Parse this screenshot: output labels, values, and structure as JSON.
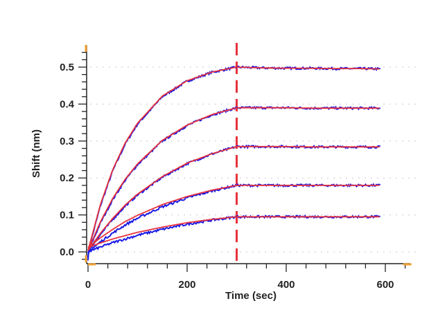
{
  "chart_data": {
    "type": "line",
    "title": "",
    "xlabel": "Time (sec)",
    "ylabel": "Shift (nm)",
    "xlim": [
      0,
      650
    ],
    "ylim": [
      -0.03,
      0.56
    ],
    "x_ticks": [
      "0",
      "200",
      "400",
      "600"
    ],
    "y_ticks": [
      "0.0",
      "0.1",
      "0.2",
      "0.3",
      "0.4",
      "0.5"
    ],
    "grid": "horizontal dotted",
    "vertical_marker_x": 300,
    "colors": {
      "measured": "#1a1ae6",
      "fit": "#e8323c",
      "marker": "#e8323c",
      "cursor": "#f0a030"
    },
    "x": [
      0,
      25,
      50,
      75,
      100,
      150,
      200,
      250,
      300,
      350,
      400,
      450,
      500,
      550,
      590
    ],
    "series": [
      {
        "values": [
          0.0,
          0.125,
          0.22,
          0.292,
          0.346,
          0.42,
          0.462,
          0.486,
          0.5,
          0.498,
          0.497,
          0.497,
          0.496,
          0.496,
          0.495
        ]
      },
      {
        "values": [
          0.0,
          0.078,
          0.142,
          0.194,
          0.236,
          0.3,
          0.342,
          0.371,
          0.39,
          0.39,
          0.39,
          0.389,
          0.389,
          0.389,
          0.389
        ]
      },
      {
        "values": [
          0.0,
          0.047,
          0.088,
          0.124,
          0.154,
          0.202,
          0.239,
          0.265,
          0.285,
          0.285,
          0.285,
          0.284,
          0.284,
          0.284,
          0.284
        ]
      },
      {
        "values": [
          0.0,
          0.027,
          0.051,
          0.073,
          0.091,
          0.122,
          0.146,
          0.165,
          0.18,
          0.18,
          0.18,
          0.18,
          0.18,
          0.18,
          0.18
        ]
      },
      {
        "values": [
          0.0,
          0.013,
          0.025,
          0.035,
          0.045,
          0.061,
          0.075,
          0.086,
          0.095,
          0.095,
          0.095,
          0.095,
          0.095,
          0.095,
          0.095
        ]
      }
    ]
  }
}
